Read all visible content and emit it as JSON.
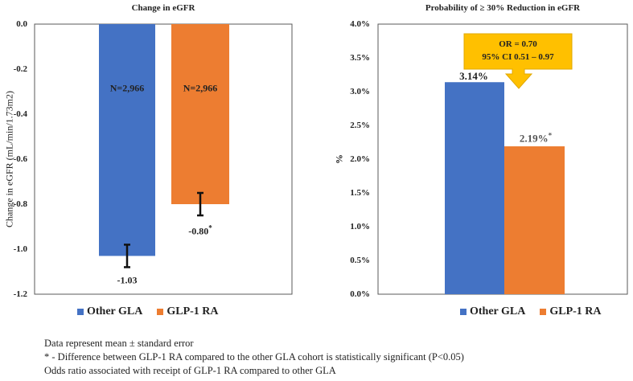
{
  "colors": {
    "other_gla": "#4472C4",
    "glp1_ra": "#ED7D31",
    "callout": "#FFC000",
    "axis": "#595959"
  },
  "chart_data": [
    {
      "type": "bar",
      "title": "Change in eGFR",
      "xlabel": "",
      "ylabel": "Change in eGFR (mL/min/1.73m2)",
      "ylim": [
        -1.2,
        0.0
      ],
      "yticks": [
        "0.0",
        "-0.2",
        "-0.4",
        "-0.6",
        "-0.8",
        "-1.0",
        "-1.2"
      ],
      "ytick_values": [
        0,
        -0.2,
        -0.4,
        -0.6,
        -0.8,
        -1.0,
        -1.2
      ],
      "categories": [
        "Other GLA",
        "GLP-1 RA"
      ],
      "values": [
        -1.03,
        -0.8
      ],
      "errors": [
        0.05,
        0.05
      ],
      "value_labels": [
        "-1.03",
        "-0.80"
      ],
      "significance": [
        "",
        "*"
      ],
      "n_labels": [
        "N=2,966",
        "N=2,966"
      ],
      "grid": false,
      "legend": "bottom"
    },
    {
      "type": "bar",
      "title": "Probability  of ≥ 30% Reduction in eGFR",
      "xlabel": "",
      "ylabel": "%",
      "ylim": [
        0,
        4.0
      ],
      "yticks": [
        "4.0%",
        "3.5%",
        "3.0%",
        "2.5%",
        "2.0%",
        "1.5%",
        "1.0%",
        "0.5%",
        "0.0%"
      ],
      "ytick_values": [
        4.0,
        3.5,
        3.0,
        2.5,
        2.0,
        1.5,
        1.0,
        0.5,
        0.0
      ],
      "categories": [
        "Other GLA",
        "GLP-1 RA"
      ],
      "values": [
        3.14,
        2.19
      ],
      "value_labels": [
        "3.14%",
        "2.19%"
      ],
      "significance": [
        "",
        "*"
      ],
      "annotation": {
        "line1": "OR = 0.70",
        "line2": "95% CI  0.51 – 0.97"
      },
      "grid": false,
      "legend": "bottom"
    }
  ],
  "footnotes": [
    "Data represent mean ± standard error",
    "* - Difference between GLP-1 RA compared to the other GLA cohort is statistically significant  (P<0.05)",
    "Odds ratio associated with receipt of GLP-1 RA compared to other GLA"
  ]
}
